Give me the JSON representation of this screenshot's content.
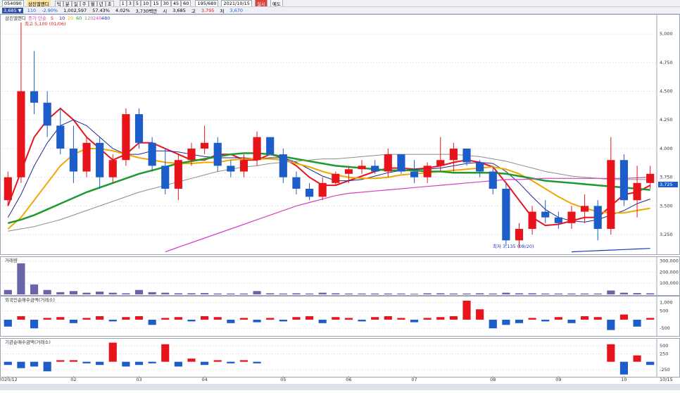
{
  "toolbar": {
    "code": "054090",
    "name": "삼진엘앤디",
    "periods": [
      "1",
      "3",
      "5",
      "10",
      "15",
      "30",
      "45",
      "60"
    ],
    "count": "195/680",
    "date": "2021/10/15",
    "buttons": [
      "틱",
      "분",
      "일",
      "주",
      "월",
      "년",
      "초"
    ],
    "actions": [
      "실시",
      "예도"
    ]
  },
  "quote": {
    "price": "3,685 ▼",
    "change": "110",
    "rate": "-2.90%",
    "volume": "1,002,597",
    "ratio": "57.43%",
    "turnover": "4.02%",
    "amount": "3,730백만",
    "open_label": "시",
    "open": "3,685",
    "high_label": "고",
    "high": "3,795",
    "low_label": "저",
    "low": "3,670"
  },
  "chart_data": [
    {
      "type": "candlestick",
      "title": "삼진엘앤디",
      "legend_label": "종가 단순",
      "up_color": "#e8141c",
      "down_color": "#1c5dc9",
      "grid": true,
      "ylim": [
        3085,
        5160
      ],
      "yticks": [
        {
          "value": 3250,
          "label": "3,250"
        },
        {
          "value": 3500,
          "label": "3,500"
        },
        {
          "value": 3750,
          "label": "3,750"
        },
        {
          "value": 4000,
          "label": "4,000"
        },
        {
          "value": 4250,
          "label": "4,250"
        },
        {
          "value": 4500,
          "label": "4,500"
        },
        {
          "value": 4750,
          "label": "4,750"
        },
        {
          "value": 5000,
          "label": "5,000"
        }
      ],
      "categories": [
        "2020/12",
        null,
        null,
        null,
        null,
        "02",
        null,
        null,
        null,
        null,
        "03",
        null,
        null,
        null,
        null,
        "04",
        null,
        null,
        null,
        null,
        null,
        "05",
        null,
        null,
        null,
        null,
        "06",
        null,
        null,
        null,
        null,
        "07",
        null,
        null,
        null,
        null,
        null,
        "08",
        null,
        null,
        null,
        null,
        "09",
        null,
        null,
        null,
        null,
        "10",
        null,
        null
      ],
      "ohlc": [
        [
          3550,
          3800,
          3500,
          3750
        ],
        [
          3750,
          5100,
          3700,
          4500
        ],
        [
          4500,
          4850,
          4300,
          4400
        ],
        [
          4400,
          4500,
          4100,
          4200
        ],
        [
          4200,
          4350,
          3950,
          4000
        ],
        [
          4000,
          4200,
          3700,
          3800
        ],
        [
          3800,
          4100,
          3750,
          4050
        ],
        [
          4050,
          4100,
          3650,
          3750
        ],
        [
          3750,
          3950,
          3700,
          3900
        ],
        [
          3900,
          4350,
          3850,
          4300
        ],
        [
          4300,
          4350,
          4000,
          4050
        ],
        [
          4050,
          4100,
          3800,
          3850
        ],
        [
          3850,
          4000,
          3600,
          3650
        ],
        [
          3650,
          3950,
          3550,
          3900
        ],
        [
          3900,
          4050,
          3850,
          4000
        ],
        [
          4000,
          4200,
          3950,
          4050
        ],
        [
          4050,
          4100,
          3800,
          3850
        ],
        [
          3850,
          3900,
          3750,
          3800
        ],
        [
          3800,
          3950,
          3750,
          3900
        ],
        [
          3900,
          4150,
          3850,
          4100
        ],
        [
          4100,
          4100,
          3950,
          3950
        ],
        [
          3950,
          4000,
          3700,
          3750
        ],
        [
          3750,
          3800,
          3600,
          3650
        ],
        [
          3650,
          3700,
          3550,
          3580
        ],
        [
          3580,
          3750,
          3550,
          3700
        ],
        [
          3700,
          3800,
          3680,
          3780
        ],
        [
          3780,
          3850,
          3700,
          3820
        ],
        [
          3820,
          3900,
          3780,
          3850
        ],
        [
          3850,
          3900,
          3780,
          3800
        ],
        [
          3800,
          4000,
          3750,
          3950
        ],
        [
          3950,
          3950,
          3780,
          3800
        ],
        [
          3800,
          3900,
          3700,
          3750
        ],
        [
          3750,
          3880,
          3700,
          3850
        ],
        [
          3850,
          4100,
          3800,
          3900
        ],
        [
          3900,
          4050,
          3800,
          4000
        ],
        [
          4000,
          4000,
          3850,
          3880
        ],
        [
          3880,
          3900,
          3750,
          3800
        ],
        [
          3800,
          3850,
          3600,
          3650
        ],
        [
          3650,
          3700,
          3150,
          3200
        ],
        [
          3200,
          3350,
          3135,
          3300
        ],
        [
          3300,
          3500,
          3250,
          3450
        ],
        [
          3450,
          3550,
          3350,
          3400
        ],
        [
          3400,
          3450,
          3300,
          3350
        ],
        [
          3350,
          3500,
          3300,
          3450
        ],
        [
          3450,
          3600,
          3350,
          3500
        ],
        [
          3500,
          3550,
          3200,
          3300
        ],
        [
          3300,
          4100,
          3250,
          3900
        ],
        [
          3900,
          3950,
          3500,
          3550
        ],
        [
          3550,
          3850,
          3400,
          3700
        ],
        [
          3700,
          3850,
          3650,
          3780
        ]
      ],
      "series": [
        {
          "name": "5",
          "color": "#e8141c",
          "width": 2,
          "values": [
            3500,
            3800,
            4100,
            4250,
            4350,
            4250,
            4100,
            4000,
            3900,
            3950,
            4050,
            4050,
            4000,
            3950,
            3900,
            3900,
            3950,
            3950,
            3900,
            3900,
            3950,
            3920,
            3850,
            3750,
            3680,
            3680,
            3720,
            3760,
            3800,
            3830,
            3830,
            3820,
            3830,
            3850,
            3880,
            3900,
            3880,
            3840,
            3700,
            3550,
            3400,
            3330,
            3340,
            3370,
            3400,
            3400,
            3500,
            3600,
            3620,
            3680
          ]
        },
        {
          "name": "10",
          "color": "#1b2a8c",
          "width": 1,
          "values": [
            3400,
            3600,
            3850,
            4050,
            4200,
            4250,
            4200,
            4100,
            4000,
            3950,
            3950,
            3980,
            3980,
            3970,
            3950,
            3930,
            3920,
            3920,
            3920,
            3910,
            3920,
            3920,
            3880,
            3820,
            3760,
            3720,
            3720,
            3730,
            3760,
            3790,
            3810,
            3820,
            3820,
            3830,
            3850,
            3870,
            3880,
            3870,
            3800,
            3700,
            3580,
            3470,
            3400,
            3370,
            3360,
            3380,
            3420,
            3460,
            3520,
            3560
          ]
        },
        {
          "name": "20",
          "color": "#f0a800",
          "width": 2,
          "values": [
            3300,
            3400,
            3550,
            3700,
            3850,
            3950,
            4000,
            4000,
            3980,
            3950,
            3920,
            3900,
            3880,
            3870,
            3870,
            3880,
            3880,
            3900,
            3910,
            3910,
            3910,
            3900,
            3870,
            3840,
            3800,
            3770,
            3750,
            3740,
            3740,
            3750,
            3770,
            3780,
            3790,
            3800,
            3810,
            3820,
            3830,
            3840,
            3820,
            3780,
            3720,
            3650,
            3580,
            3520,
            3480,
            3450,
            3440,
            3440,
            3460,
            3480
          ]
        },
        {
          "name": "60",
          "color": "#1f9a2e",
          "width": 2.5,
          "values": [
            3350,
            3380,
            3420,
            3470,
            3520,
            3570,
            3620,
            3660,
            3700,
            3740,
            3780,
            3810,
            3840,
            3870,
            3890,
            3910,
            3930,
            3950,
            3960,
            3960,
            3950,
            3930,
            3910,
            3890,
            3870,
            3850,
            3840,
            3830,
            3820,
            3810,
            3810,
            3810,
            3800,
            3800,
            3790,
            3790,
            3790,
            3790,
            3780,
            3760,
            3740,
            3720,
            3710,
            3700,
            3690,
            3680,
            3670,
            3660,
            3650,
            3640
          ]
        },
        {
          "name": "120",
          "color": "#8c8c8c",
          "width": 1,
          "values": [
            3280,
            3300,
            3320,
            3350,
            3380,
            3420,
            3460,
            3500,
            3540,
            3580,
            3620,
            3650,
            3680,
            3710,
            3740,
            3770,
            3800,
            3820,
            3840,
            3850,
            3870,
            3880,
            3890,
            3900,
            3910,
            3910,
            3920,
            3930,
            3940,
            3950,
            3950,
            3950,
            3950,
            3950,
            3950,
            3940,
            3930,
            3910,
            3890,
            3860,
            3830,
            3800,
            3780,
            3760,
            3750,
            3740,
            3730,
            3730,
            3730,
            3730
          ]
        },
        {
          "name": "240",
          "color": "#d63fc4",
          "width": 1.2,
          "values": [
            null,
            null,
            null,
            null,
            null,
            null,
            null,
            null,
            null,
            null,
            null,
            null,
            3100,
            3140,
            3180,
            3220,
            3260,
            3300,
            3340,
            3380,
            3420,
            3460,
            3500,
            3530,
            3560,
            3590,
            3610,
            3620,
            3630,
            3640,
            3650,
            3660,
            3670,
            3680,
            3690,
            3700,
            3710,
            3720,
            3730,
            3730,
            3735,
            3740,
            3740,
            3740,
            3740,
            3740,
            3740,
            3740,
            3745,
            3750
          ]
        },
        {
          "name": "480",
          "color": "#1a3fb5",
          "width": 1.2,
          "values": [
            null,
            null,
            null,
            null,
            null,
            null,
            null,
            null,
            null,
            null,
            null,
            null,
            null,
            null,
            null,
            null,
            null,
            null,
            null,
            null,
            null,
            null,
            null,
            null,
            null,
            null,
            null,
            null,
            null,
            null,
            null,
            null,
            null,
            null,
            null,
            null,
            null,
            null,
            null,
            null,
            null,
            null,
            null,
            3100,
            3105,
            3110,
            3115,
            3120,
            3125,
            3130
          ]
        }
      ],
      "annotations": [
        "최고 5,100 (01/06)",
        "최저 3,135 (08/20)"
      ],
      "last_label": "3,725"
    },
    {
      "type": "bar",
      "title": "거래량",
      "color": "#6a64a8",
      "grid": true,
      "ylim": [
        0,
        330000
      ],
      "yticks": [
        {
          "value": 100000,
          "label": "100,000"
        },
        {
          "value": 200000,
          "label": "200,000"
        },
        {
          "value": 300000,
          "label": "300,000"
        }
      ],
      "values": [
        40000,
        280000,
        90000,
        40000,
        20000,
        30000,
        15000,
        25000,
        15000,
        10000,
        40000,
        20000,
        15000,
        10000,
        10000,
        12000,
        8000,
        8000,
        8000,
        30000,
        10000,
        8000,
        10000,
        8000,
        15000,
        10000,
        8000,
        8000,
        8000,
        8000,
        8000,
        6000,
        10000,
        10000,
        8000,
        8000,
        10000,
        8000,
        15000,
        10000,
        10000,
        8000,
        8000,
        8000,
        8000,
        8000,
        35000,
        15000,
        12000,
        10000
      ]
    },
    {
      "type": "bar",
      "title": "외국인순매수금액(거래소)",
      "up_color": "#e8141c",
      "down_color": "#1c5dc9",
      "grid": true,
      "ylim": [
        -900,
        1300
      ],
      "yticks": [
        {
          "value": -500,
          "label": "-500"
        },
        500,
        {
          "value": 1000,
          "label": "1,000"
        }
      ],
      "values": [
        -400,
        200,
        -500,
        100,
        150,
        -200,
        100,
        200,
        -100,
        150,
        200,
        -300,
        100,
        150,
        -100,
        200,
        150,
        -200,
        100,
        -150,
        100,
        -100,
        150,
        200,
        -200,
        150,
        100,
        -100,
        150,
        200,
        100,
        -150,
        100,
        150,
        200,
        1100,
        600,
        -500,
        -300,
        -200,
        100,
        -100,
        150,
        -200,
        200,
        150,
        -600,
        300,
        -400,
        100
      ]
    },
    {
      "type": "bar",
      "title": "기관순매수금액(거래소)",
      "up_color": "#e8141c",
      "down_color": "#1c5dc9",
      "grid": true,
      "ylim": [
        -450,
        700
      ],
      "yticks": [
        -250,
        250,
        500
      ],
      "values": [
        -100,
        -200,
        -150,
        -300,
        50,
        50,
        -50,
        -100,
        600,
        -150,
        -100,
        -50,
        550,
        -150,
        100,
        -100,
        50,
        -50,
        50,
        -50,
        0,
        0,
        0,
        0,
        0,
        0,
        0,
        0,
        0,
        0,
        0,
        0,
        0,
        0,
        0,
        0,
        0,
        0,
        0,
        0,
        0,
        0,
        0,
        0,
        0,
        0,
        550,
        -400,
        200,
        -100
      ]
    }
  ],
  "end_date": "10/15"
}
